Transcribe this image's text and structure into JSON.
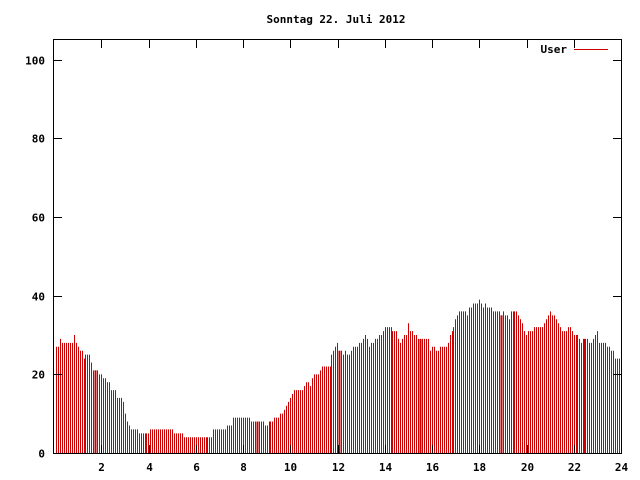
{
  "chart_data": {
    "type": "bar",
    "title": "Sonntag 22. Juli 2012",
    "xlabel": "",
    "ylabel": "",
    "xlim": [
      0,
      24
    ],
    "ylim": [
      0,
      105
    ],
    "x_ticks": [
      2,
      4,
      6,
      8,
      10,
      12,
      14,
      16,
      18,
      20,
      22,
      24
    ],
    "y_ticks": [
      0,
      20,
      40,
      60,
      80,
      100
    ],
    "grid": false,
    "legend_position": "top-right",
    "series": [
      {
        "name": "User",
        "color": "#cc0000",
        "x_start": 0.083,
        "x_step": 0.0833,
        "values": [
          27,
          27,
          29,
          28,
          28,
          28,
          28,
          28,
          28,
          30,
          28,
          27,
          26,
          26,
          24,
          25,
          25,
          25,
          23,
          21,
          21,
          21,
          20,
          20,
          19,
          19,
          18,
          18,
          16,
          16,
          16,
          14,
          14,
          14,
          13,
          10,
          8,
          7,
          6,
          6,
          6,
          6,
          5,
          5,
          5,
          5,
          5,
          5,
          6,
          6,
          6,
          6,
          6,
          6,
          6,
          6,
          6,
          6,
          6,
          6,
          5,
          5,
          5,
          5,
          5,
          4,
          4,
          4,
          4,
          4,
          4,
          4,
          4,
          4,
          4,
          4,
          4,
          4,
          4,
          4,
          6,
          6,
          6,
          6,
          6,
          6,
          6,
          7,
          7,
          7,
          9,
          9,
          9,
          9,
          9,
          9,
          9,
          9,
          9,
          8,
          8,
          8,
          8,
          8,
          8,
          8,
          7,
          7,
          8,
          8,
          8,
          9,
          9,
          9,
          10,
          10,
          11,
          12,
          13,
          14,
          15,
          16,
          16,
          16,
          16,
          16,
          17,
          18,
          18,
          17,
          19,
          20,
          20,
          20,
          21,
          22,
          22,
          22,
          22,
          22,
          25,
          26,
          27,
          28,
          26,
          26,
          25,
          26,
          25,
          25,
          26,
          27,
          27,
          27,
          28,
          28,
          29,
          30,
          29,
          27,
          28,
          28,
          29,
          29,
          30,
          30,
          31,
          32,
          32,
          32,
          32,
          31,
          31,
          31,
          29,
          28,
          29,
          30,
          30,
          33,
          31,
          31,
          30,
          30,
          29,
          29,
          29,
          29,
          29,
          29,
          26,
          27,
          27,
          26,
          26,
          27,
          27,
          27,
          27,
          28,
          30,
          31,
          32,
          34,
          35,
          36,
          36,
          36,
          36,
          35,
          37,
          37,
          38,
          38,
          38,
          39,
          38,
          37,
          38,
          37,
          37,
          37,
          36,
          36,
          36,
          36,
          35,
          36,
          35,
          35,
          34,
          36,
          36,
          36,
          36,
          35,
          34,
          33,
          31,
          30,
          31,
          31,
          31,
          32,
          32,
          32,
          32,
          32,
          33,
          34,
          35,
          36,
          35,
          35,
          34,
          33,
          32,
          31,
          31,
          31,
          32,
          32,
          31,
          30,
          30,
          30,
          29,
          28,
          29,
          29,
          29,
          28,
          28,
          29,
          30,
          31,
          28,
          28,
          28,
          28,
          27,
          27,
          26,
          26,
          24,
          24,
          24
        ]
      }
    ],
    "highlight_x": [
      1.75,
      8.58,
      12.08,
      15.5,
      18.92,
      22.42
    ]
  }
}
